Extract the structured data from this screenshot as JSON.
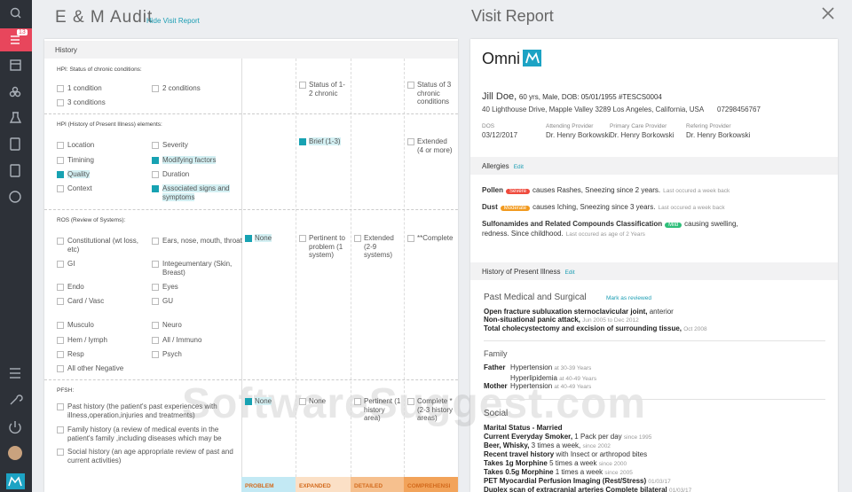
{
  "sidebar": {
    "badge": "13"
  },
  "audit": {
    "title": "E & M Audit",
    "toggle": "Hide Visit Report",
    "section": "History",
    "rows": [
      {
        "heading": "HPI: Status of chronic conditions:",
        "items": [
          {
            "label": "1 condition",
            "checked": false
          },
          {
            "label": "2 conditions",
            "checked": false
          },
          {
            "label": "3 conditions",
            "checked": false
          }
        ],
        "cells": [
          null,
          {
            "label": "Status of 1-2 chronic",
            "checked": false
          },
          null,
          {
            "label": "Status of 3 chronic conditions",
            "checked": false
          }
        ]
      },
      {
        "heading": "HPI (History of Present Illness) elements:",
        "items": [
          {
            "label": "Location",
            "checked": false
          },
          {
            "label": "Severity",
            "checked": false
          },
          {
            "label": "Timining",
            "checked": false
          },
          {
            "label": "Modifying factors",
            "checked": true
          },
          {
            "label": "Quality",
            "checked": true
          },
          {
            "label": "Duration",
            "checked": false
          },
          {
            "label": "Context",
            "checked": false
          },
          {
            "label": "Associated signs and symptoms",
            "checked": true
          }
        ],
        "cells": [
          null,
          {
            "label": "Brief (1-3)",
            "checked": true
          },
          null,
          {
            "label": "Extended (4 or more)",
            "checked": false
          }
        ]
      },
      {
        "heading": "ROS (Review of Systems):",
        "items": [
          {
            "label": "Constitutional (wt loss, etc)",
            "checked": false
          },
          {
            "label": "Ears, nose, mouth, throat",
            "checked": false
          },
          {
            "label": "GI",
            "checked": false
          },
          {
            "label": "Integeumentary (Skin, Breast)",
            "checked": false
          },
          {
            "label": "Endo",
            "checked": false
          },
          {
            "label": "Eyes",
            "checked": false
          },
          {
            "label": "Card / Vasc",
            "checked": false
          },
          {
            "label": "GU",
            "checked": false
          },
          {
            "label": "Musculo",
            "checked": false
          },
          {
            "label": "Neuro",
            "checked": false
          },
          {
            "label": "Hem / lymph",
            "checked": false
          },
          {
            "label": "All / Immuno",
            "checked": false
          },
          {
            "label": "Resp",
            "checked": false
          },
          {
            "label": "Psych",
            "checked": false
          },
          {
            "label": "All other Negative",
            "checked": false
          }
        ],
        "cells": [
          {
            "label": "None",
            "checked": true
          },
          {
            "label": "Pertinent to problem (1 system)",
            "checked": false
          },
          {
            "label": "Extended (2-9 systems)",
            "checked": false
          },
          {
            "label": "**Complete",
            "checked": false
          }
        ]
      },
      {
        "heading": "PFSH:",
        "items": [
          {
            "label": "Past history (the patient's past experiences with illness,operation,injuries and treatments)",
            "checked": false
          },
          {
            "label": "Family history (a review of medical events in the patient's family ,including diseases which may be",
            "checked": false
          },
          {
            "label": "Social history (an age appropriate review of past and current activities)",
            "checked": false
          }
        ],
        "cells": [
          {
            "label": "None",
            "checked": true
          },
          {
            "label": "None",
            "checked": false
          },
          {
            "label": "Pertinent (1 history area)",
            "checked": false
          },
          {
            "label": "Complete * (2-3 history areas)",
            "checked": false
          }
        ]
      }
    ],
    "footer": [
      "PROBLEM",
      "EXPANDED",
      "DETAILED",
      "COMPREHENSI"
    ]
  },
  "report": {
    "title": "Visit Report",
    "logo": "Omni",
    "patient": {
      "name": "Jill Doe,",
      "details": "60 yrs, Male, DOB: 05/01/1955 #TESCS0004",
      "address": "40 Lighthouse Drive, Mapple Valley 3289 Los Angeles, California, USA",
      "phone": "07298456767"
    },
    "providers": [
      {
        "label": "DOS",
        "value": "03/12/2017"
      },
      {
        "label": "Attending Provider",
        "value": "Dr. Henry Borkowski"
      },
      {
        "label": "Primary Care Provider",
        "value": "Dr. Henry Borkowski"
      },
      {
        "label": "Refering Provider",
        "value": "Dr. Henry Borkowski"
      }
    ],
    "allergies": {
      "title": "Allergies",
      "edit": "Edit",
      "items": [
        {
          "name": "Pollen",
          "severity": "Severe",
          "color": "#ef4a3c",
          "text": "causes Rashes, Sneezing since 2 years.",
          "note": "Last occured a week back"
        },
        {
          "name": "Dust",
          "severity": "Moderate",
          "color": "#f29a1f",
          "text": "causes Iching, Sneezing since 3 years.",
          "note": "Last occured a week back"
        },
        {
          "name": "Sulfonamides and Related Compounds Classification",
          "severity": "Mild",
          "color": "#2ebf7a",
          "text": "causing swelling, redness. Since childhood.",
          "note": "Last occured as age of 2 Years"
        }
      ]
    },
    "hpi": {
      "title": "History of Present Illness",
      "edit": "Edit",
      "pms": {
        "title": "Past Medical and Surgical",
        "action": "Mark as reviewed",
        "items": [
          {
            "bold": "Open fracture subluxation sternoclavicular joint,",
            "text": "anterior"
          },
          {
            "bold": "Non-situational panic attack,",
            "note": "Jun 2005 to Dec 2012"
          },
          {
            "bold": "Total cholecystectomy and excision of surrounding tissue,",
            "note": "Oct 2008"
          }
        ]
      },
      "family": {
        "title": "Family",
        "items": [
          {
            "relation": "Father",
            "condition": "Hypertension",
            "note": "at 30-39 Years"
          },
          {
            "condition": "Hyperlipidemia",
            "note": "at 40-49 Years"
          },
          {
            "relation": "Mother",
            "condition": "Hypertension",
            "note": "at 40-49 Years"
          }
        ]
      },
      "social": {
        "title": "Social",
        "items": [
          {
            "bold": "Marital Status - Married"
          },
          {
            "bold": "Current Everyday Smoker,",
            "text": "1 Pack per day",
            "note": "since 1995"
          },
          {
            "bold": "Beer, Whisky,",
            "text": "3 times a week,",
            "note": "since 2002"
          },
          {
            "bold": "Recent travel history",
            "text": "with Insect or arthropod bites"
          },
          {
            "bold": "Takes 1g Morphine",
            "text": "5 times a week",
            "note": "since 2000"
          },
          {
            "bold": "Takes 0.5g Morphine",
            "text": "1 times a week",
            "note": "since 2005"
          },
          {
            "bold": "PET Myocardial Perfusion Imaging (Rest/Stress)",
            "note": "01/03/17"
          },
          {
            "bold": "Duplex scan of extracranial arteries Complete bilateral",
            "note": "01/03/17"
          }
        ]
      }
    }
  },
  "watermark": "SoftwareSuggest.com"
}
